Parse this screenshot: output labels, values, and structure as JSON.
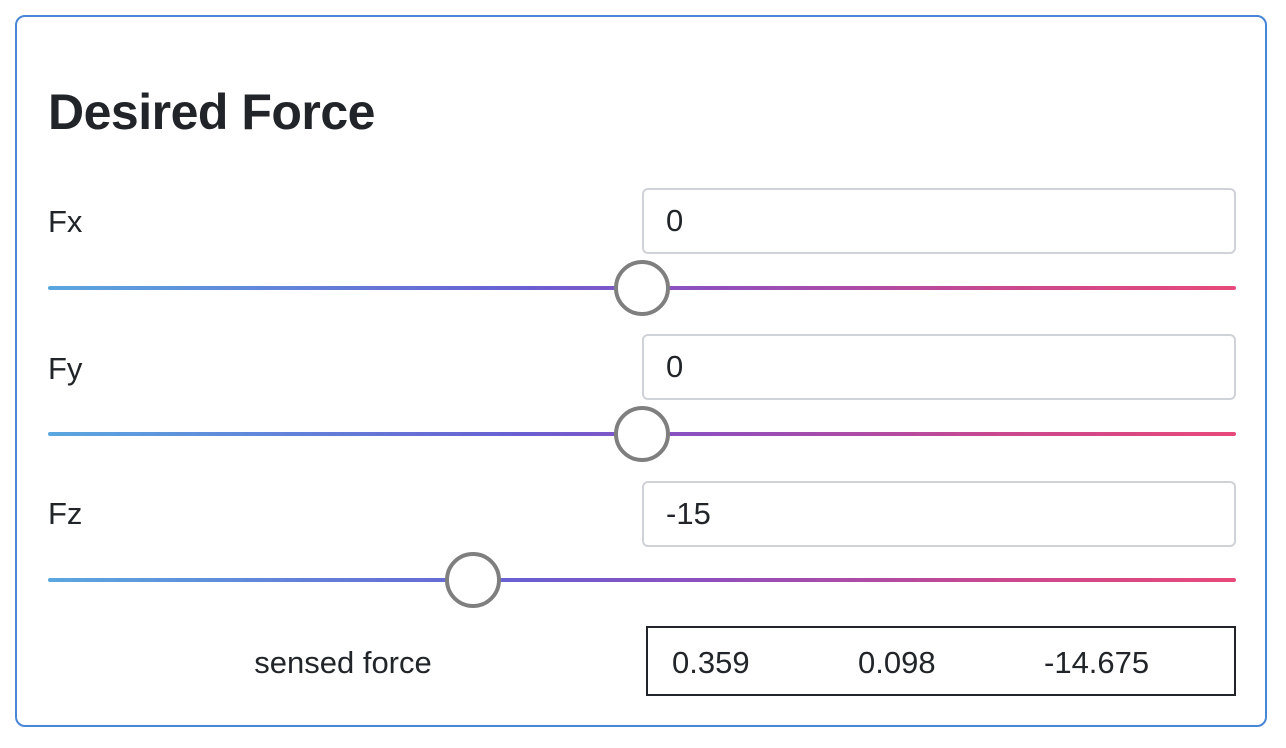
{
  "panel": {
    "title": "Desired Force"
  },
  "forces": [
    {
      "label": "Fx",
      "value": "0",
      "slider_fraction": 0.5
    },
    {
      "label": "Fy",
      "value": "0",
      "slider_fraction": 0.5
    },
    {
      "label": "Fz",
      "value": "-15",
      "slider_fraction": 0.358
    }
  ],
  "sensed": {
    "label": "sensed force",
    "values": [
      "0.359",
      "0.098",
      "-14.675"
    ]
  },
  "colors": {
    "panel_border": "#4a86d8",
    "track_start": "#5aa7e0",
    "track_end": "#e8497a",
    "thumb_border": "#7f7f7f"
  }
}
